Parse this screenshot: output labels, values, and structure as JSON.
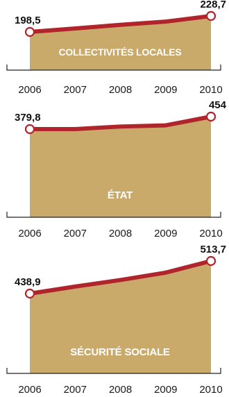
{
  "colors": {
    "area_fill": "#c9aa6b",
    "line": "#b0242b",
    "marker_fill": "#ffffff",
    "label_text": "#ffffff",
    "axis": "#222222"
  },
  "chart_data": [
    {
      "type": "area",
      "x": [
        "2006",
        "2007",
        "2008",
        "2009",
        "2010"
      ],
      "series": [
        {
          "name": "COLLECTIVITÉS LOCALES",
          "values": [
            198.5,
            205,
            212,
            218,
            228.7
          ]
        }
      ],
      "data_labels": [
        "198,5",
        "228,7"
      ]
    },
    {
      "type": "area",
      "x": [
        "2006",
        "2007",
        "2008",
        "2009",
        "2010"
      ],
      "series": [
        {
          "name": "ÉTAT",
          "values": [
            379.8,
            380,
            395,
            402,
            454
          ]
        }
      ],
      "data_labels": [
        "379,8",
        "454"
      ]
    },
    {
      "type": "area",
      "x": [
        "2006",
        "2007",
        "2008",
        "2009",
        "2010"
      ],
      "series": [
        {
          "name": "SÉCURITÉ SOCIALE",
          "values": [
            438.9,
            455,
            470,
            487,
            513.7
          ]
        }
      ],
      "data_labels": [
        "438,9",
        "513,7"
      ]
    }
  ]
}
